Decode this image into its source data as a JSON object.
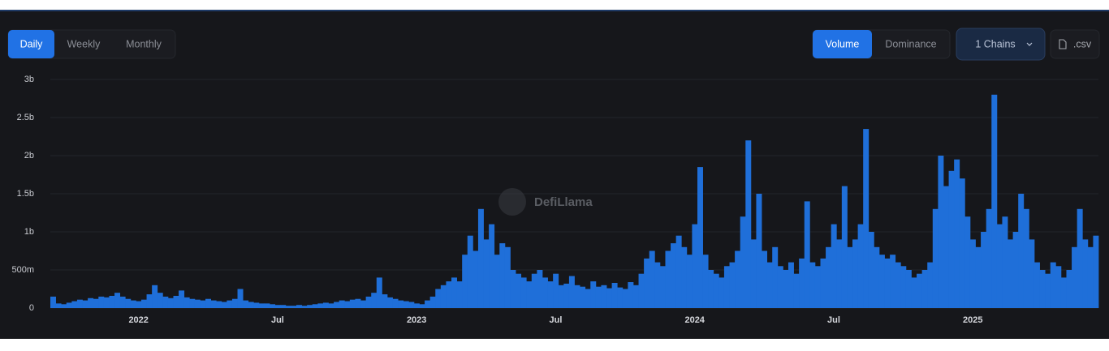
{
  "toolbar": {
    "period_tabs": [
      "Daily",
      "Weekly",
      "Monthly"
    ],
    "metric_tabs": [
      "Volume",
      "Dominance"
    ],
    "chains_button": "1 Chains",
    "csv_button": ".csv"
  },
  "watermark": "DefiLlama",
  "chart_data": {
    "type": "bar",
    "color": "#1f6fd9",
    "grid": true,
    "ylim": [
      0,
      3000000000
    ],
    "yticks": [
      0,
      {
        "value": 500000000,
        "label": "500m"
      },
      {
        "value": 1000000000,
        "label": "1b"
      },
      {
        "value": 1500000000,
        "label": "1.5b"
      },
      {
        "value": 2000000000,
        "label": "2b"
      },
      {
        "value": 2500000000,
        "label": "2.5b"
      },
      {
        "value": 3000000000,
        "label": "3b"
      }
    ],
    "categories": [
      null,
      null,
      null,
      null,
      null,
      null,
      null,
      null,
      null,
      null,
      null,
      null,
      null,
      null,
      null,
      null,
      "2022",
      null,
      null,
      null,
      null,
      null,
      null,
      null,
      null,
      null,
      null,
      null,
      null,
      null,
      null,
      null,
      null,
      null,
      null,
      null,
      null,
      null,
      null,
      null,
      null,
      null,
      "Jul",
      null,
      null,
      null,
      null,
      null,
      null,
      null,
      null,
      null,
      null,
      null,
      null,
      null,
      null,
      null,
      null,
      null,
      null,
      null,
      null,
      null,
      null,
      null,
      null,
      null,
      "2023",
      null,
      null,
      null,
      null,
      null,
      null,
      null,
      null,
      null,
      null,
      null,
      null,
      null,
      null,
      null,
      null,
      null,
      null,
      null,
      null,
      null,
      null,
      null,
      null,
      null,
      "Jul",
      null,
      null,
      null,
      null,
      null,
      null,
      null,
      null,
      null,
      null,
      null,
      null,
      null,
      null,
      null,
      null,
      null,
      null,
      null,
      null,
      null,
      null,
      null,
      null,
      null,
      "2024",
      null,
      null,
      null,
      null,
      null,
      null,
      null,
      null,
      null,
      null,
      null,
      null,
      null,
      null,
      null,
      null,
      null,
      null,
      null,
      null,
      null,
      null,
      null,
      null,
      null,
      "Jul",
      null,
      null,
      null,
      null,
      null,
      null,
      null,
      null,
      null,
      null,
      null,
      null,
      null,
      null,
      null,
      null,
      null,
      null,
      null,
      null,
      null,
      null,
      null,
      null,
      null,
      "2025",
      null,
      null,
      null,
      null,
      null,
      null,
      null,
      null,
      null,
      null,
      null,
      null,
      null,
      null,
      null,
      null,
      null,
      null,
      null,
      null,
      null,
      null,
      null
    ],
    "values": [
      150000000.0,
      60000000.0,
      50000000.0,
      70000000.0,
      90000000.0,
      110000000.0,
      100000000.0,
      130000000.0,
      120000000.0,
      150000000.0,
      140000000.0,
      160000000.0,
      200000000.0,
      150000000.0,
      120000000.0,
      100000000.0,
      90000000.0,
      110000000.0,
      180000000.0,
      300000000.0,
      200000000.0,
      150000000.0,
      130000000.0,
      160000000.0,
      230000000.0,
      140000000.0,
      120000000.0,
      110000000.0,
      100000000.0,
      120000000.0,
      100000000.0,
      90000000.0,
      80000000.0,
      100000000.0,
      120000000.0,
      250000000.0,
      100000000.0,
      80000000.0,
      70000000.0,
      60000000.0,
      60000000.0,
      50000000.0,
      40000000.0,
      40000000.0,
      30000000.0,
      30000000.0,
      40000000.0,
      30000000.0,
      40000000.0,
      50000000.0,
      60000000.0,
      70000000.0,
      60000000.0,
      80000000.0,
      100000000.0,
      90000000.0,
      110000000.0,
      120000000.0,
      100000000.0,
      150000000.0,
      200000000.0,
      400000000.0,
      180000000.0,
      140000000.0,
      120000000.0,
      100000000.0,
      90000000.0,
      80000000.0,
      60000000.0,
      50000000.0,
      100000000.0,
      150000000.0,
      250000000.0,
      300000000.0,
      350000000.0,
      400000000.0,
      350000000.0,
      700000000.0,
      950000000.0,
      750000000.0,
      1300000000.0,
      900000000.0,
      1100000000.0,
      700000000.0,
      850000000.0,
      800000000.0,
      500000000.0,
      450000000.0,
      400000000.0,
      350000000.0,
      450000000.0,
      500000000.0,
      400000000.0,
      350000000.0,
      450000000.0,
      300000000.0,
      320000000.0,
      420000000.0,
      300000000.0,
      280000000.0,
      250000000.0,
      350000000.0,
      280000000.0,
      300000000.0,
      260000000.0,
      330000000.0,
      270000000.0,
      250000000.0,
      340000000.0,
      300000000.0,
      450000000.0,
      650000000.0,
      750000000.0,
      600000000.0,
      550000000.0,
      750000000.0,
      850000000.0,
      950000000.0,
      800000000.0,
      700000000.0,
      1100000000.0,
      1850000000.0,
      700000000.0,
      500000000.0,
      450000000.0,
      400000000.0,
      550000000.0,
      600000000.0,
      750000000.0,
      1200000000.0,
      2200000000.0,
      900000000.0,
      1500000000.0,
      750000000.0,
      600000000.0,
      800000000.0,
      550000000.0,
      500000000.0,
      600000000.0,
      450000000.0,
      650000000.0,
      1400000000.0,
      600000000.0,
      550000000.0,
      650000000.0,
      800000000.0,
      1100000000.0,
      900000000.0,
      1600000000.0,
      800000000.0,
      900000000.0,
      1100000000.0,
      2350000000.0,
      1000000000.0,
      800000000.0,
      700000000.0,
      650000000.0,
      700000000.0,
      600000000.0,
      550000000.0,
      500000000.0,
      400000000.0,
      450000000.0,
      500000000.0,
      600000000.0,
      1300000000.0,
      2000000000.0,
      1600000000.0,
      1800000000.0,
      1950000000.0,
      1700000000.0,
      1200000000.0,
      900000000.0,
      800000000.0,
      1000000000.0,
      1300000000.0,
      2800000000.0,
      1100000000.0,
      1200000000.0,
      900000000.0,
      1000000000.0,
      1500000000.0,
      1300000000.0,
      900000000.0,
      600000000.0,
      500000000.0,
      450000000.0,
      600000000.0,
      550000000.0,
      400000000.0,
      500000000.0,
      800000000.0,
      1300000000.0,
      900000000.0,
      800000000.0,
      950000000.0
    ]
  }
}
